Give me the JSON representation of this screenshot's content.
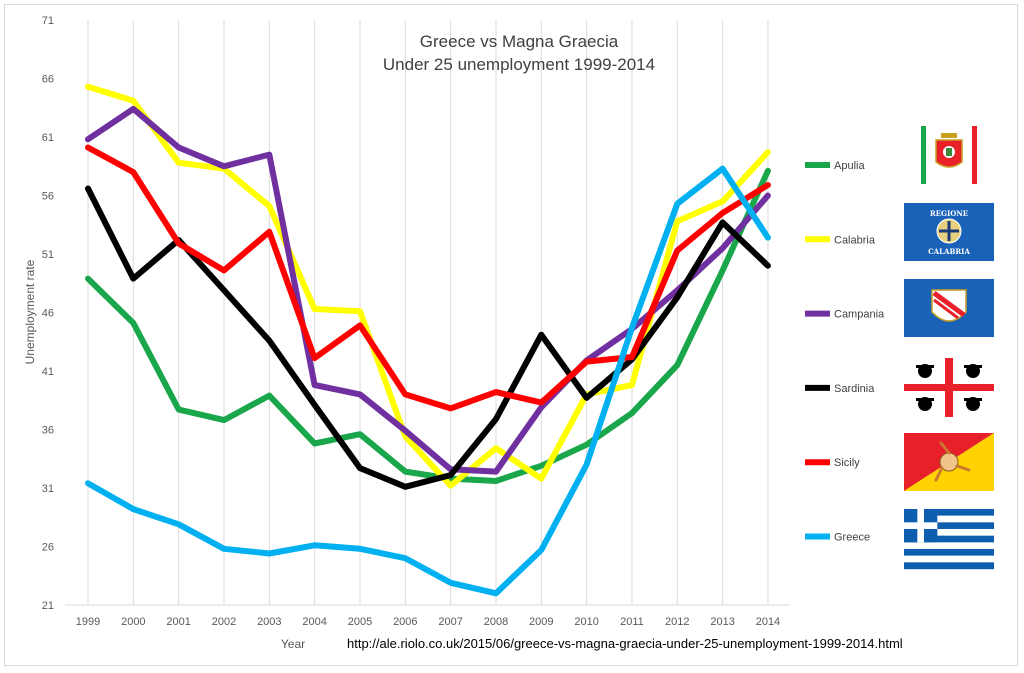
{
  "chart_data": {
    "type": "line",
    "title": "Greece vs Magna Graecia",
    "subtitle": "Under 25 unemployment 1999-2014",
    "xlabel": "Year",
    "ylabel": "Unemployment rate",
    "x": [
      "1999",
      "2000",
      "2001",
      "2002",
      "2003",
      "2004",
      "2005",
      "2006",
      "2007",
      "2008",
      "2009",
      "2010",
      "2011",
      "2012",
      "2013",
      "2014"
    ],
    "yticks": [
      21,
      26,
      31,
      36,
      41,
      46,
      51,
      56,
      61,
      66,
      71
    ],
    "ylim": [
      21,
      71
    ],
    "grid": "vertical",
    "legend_position": "right",
    "series": [
      {
        "name": "Apulia",
        "color": "#1aa64a",
        "flag": "apulia-flag",
        "values": [
          48.9,
          45.1,
          37.7,
          36.8,
          38.9,
          34.8,
          35.6,
          32.4,
          31.8,
          31.6,
          32.9,
          34.7,
          37.4,
          41.5,
          49.6,
          58.1
        ]
      },
      {
        "name": "Calabria",
        "color": "#ffff00",
        "flag": "calabria-flag",
        "values": [
          65.3,
          64.1,
          58.8,
          58.3,
          55.1,
          46.3,
          46.1,
          35.4,
          31.2,
          34.4,
          31.8,
          39.0,
          39.8,
          53.8,
          55.5,
          59.7
        ]
      },
      {
        "name": "Campania",
        "color": "#7030a0",
        "flag": "campania-flag",
        "values": [
          60.8,
          63.4,
          60.1,
          58.5,
          59.5,
          39.8,
          39.0,
          35.9,
          32.6,
          32.4,
          37.9,
          41.9,
          44.6,
          47.9,
          51.5,
          56.0
        ]
      },
      {
        "name": "Sardinia",
        "color": "#000000",
        "flag": "sardinia-flag",
        "values": [
          56.6,
          48.9,
          52.2,
          47.9,
          43.6,
          38.1,
          32.7,
          31.1,
          32.1,
          36.9,
          44.1,
          38.7,
          42.0,
          47.3,
          53.7,
          50.0
        ]
      },
      {
        "name": "Sicily",
        "color": "#ff0000",
        "flag": "sicily-flag",
        "values": [
          60.1,
          58.0,
          51.9,
          49.6,
          52.9,
          42.1,
          44.9,
          39.0,
          37.8,
          39.2,
          38.3,
          41.8,
          42.2,
          51.3,
          54.5,
          56.9
        ]
      },
      {
        "name": "Greece",
        "color": "#00b0f0",
        "flag": "greece-flag",
        "values": [
          31.4,
          29.2,
          27.9,
          25.8,
          25.4,
          26.1,
          25.8,
          25.0,
          22.9,
          22.0,
          25.7,
          33.0,
          44.7,
          55.3,
          58.3,
          52.4
        ]
      }
    ]
  },
  "flags": {
    "calabria_text_top": "REGIONE",
    "calabria_text_bottom": "CALABRIA"
  },
  "source_url": "http://ale.riolo.co.uk/2015/06/greece-vs-magna-graecia-under-25-unemployment-1999-2014.html",
  "colors": {
    "grid": "#d9d9d9",
    "axis_text": "#595959",
    "title_text": "#404040"
  }
}
